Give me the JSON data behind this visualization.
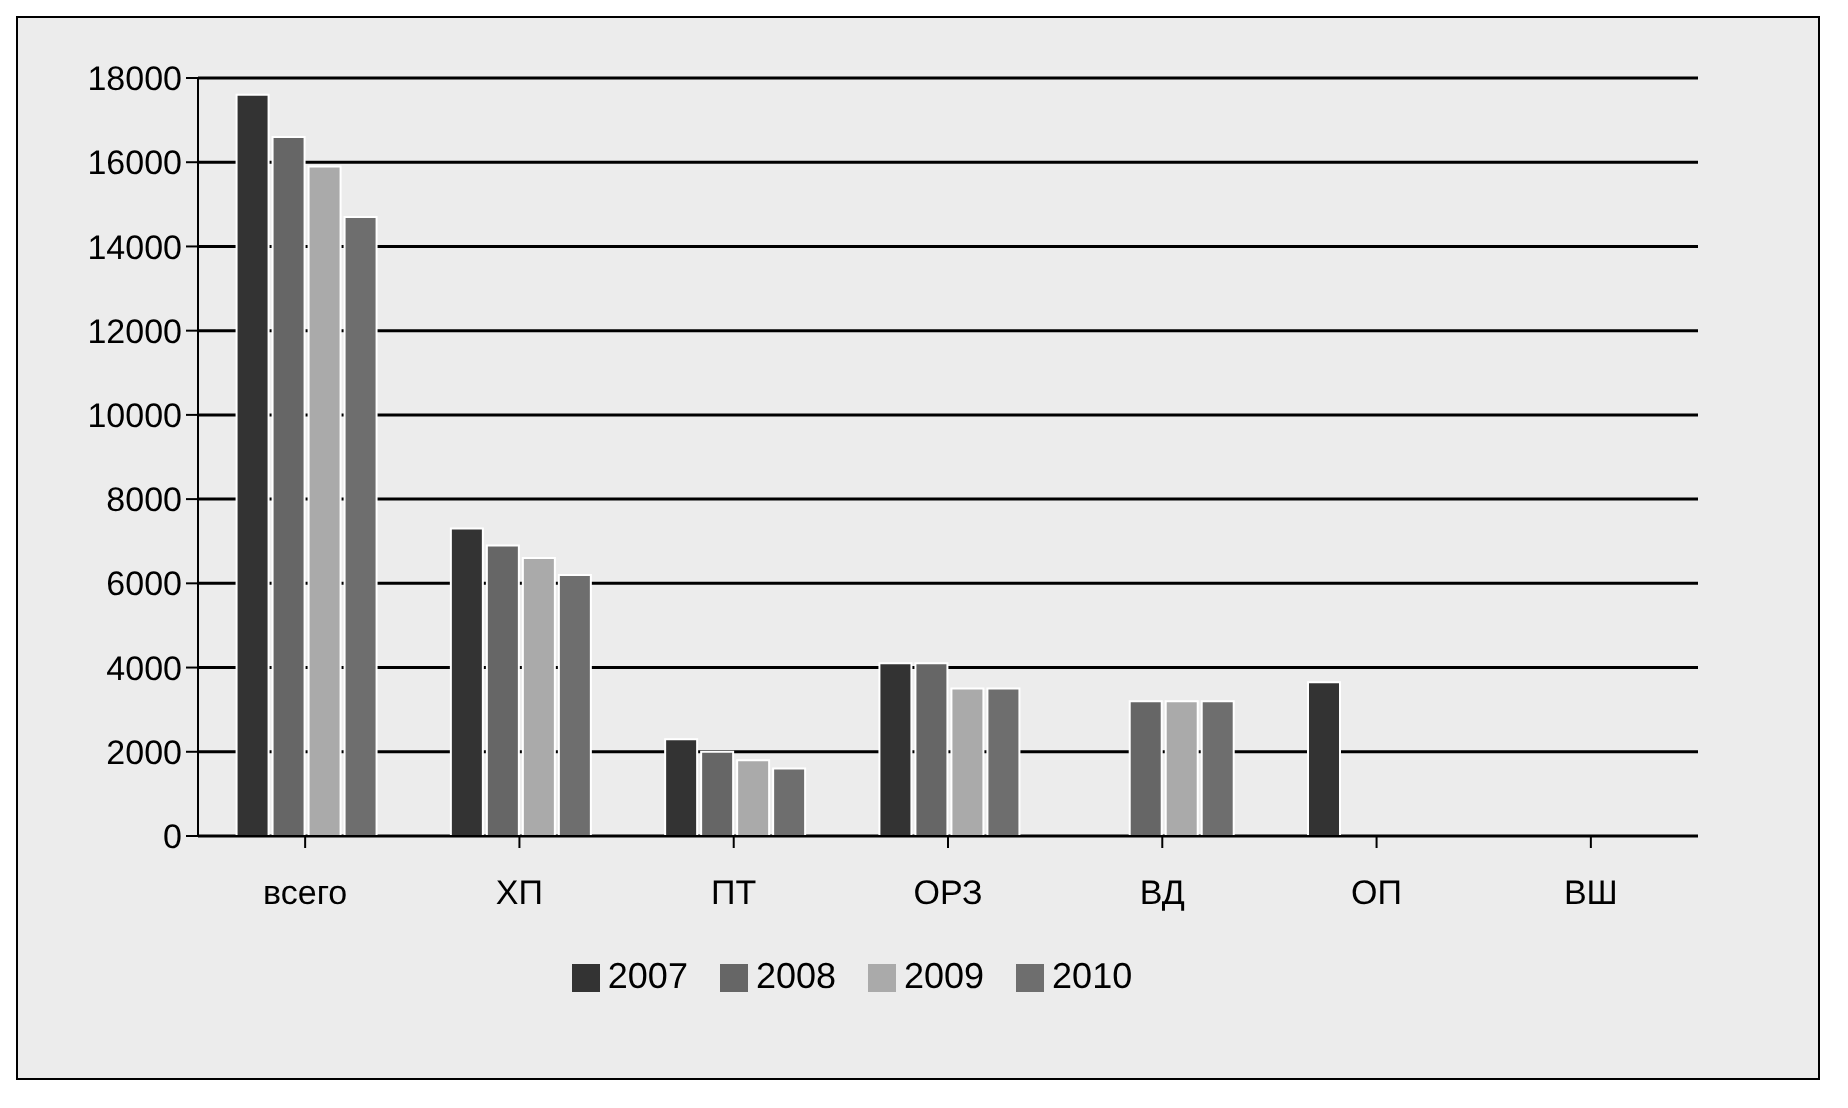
{
  "chart_data": {
    "type": "bar",
    "categories": [
      "всего",
      "ХП",
      "ПТ",
      "ОРЗ",
      "ВД",
      "ОП",
      "ВШ"
    ],
    "series": [
      {
        "name": "2007",
        "color": "#333333",
        "values": [
          17600,
          7300,
          2300,
          4100,
          0,
          3650,
          0
        ]
      },
      {
        "name": "2008",
        "color": "#666666",
        "values": [
          16600,
          6900,
          2000,
          4100,
          3200,
          0,
          0
        ]
      },
      {
        "name": "2009",
        "color": "#aaaaaa",
        "values": [
          15900,
          6600,
          1800,
          3500,
          3200,
          0,
          0
        ]
      },
      {
        "name": "2010",
        "color": "#6e6e6e",
        "values": [
          14700,
          6200,
          1600,
          3500,
          3200,
          0,
          0
        ]
      }
    ],
    "ylim": [
      0,
      18000
    ],
    "yticks": [
      0,
      2000,
      4000,
      6000,
      8000,
      10000,
      12000,
      14000,
      16000,
      18000
    ],
    "grid": "y",
    "legend": "bottom"
  }
}
